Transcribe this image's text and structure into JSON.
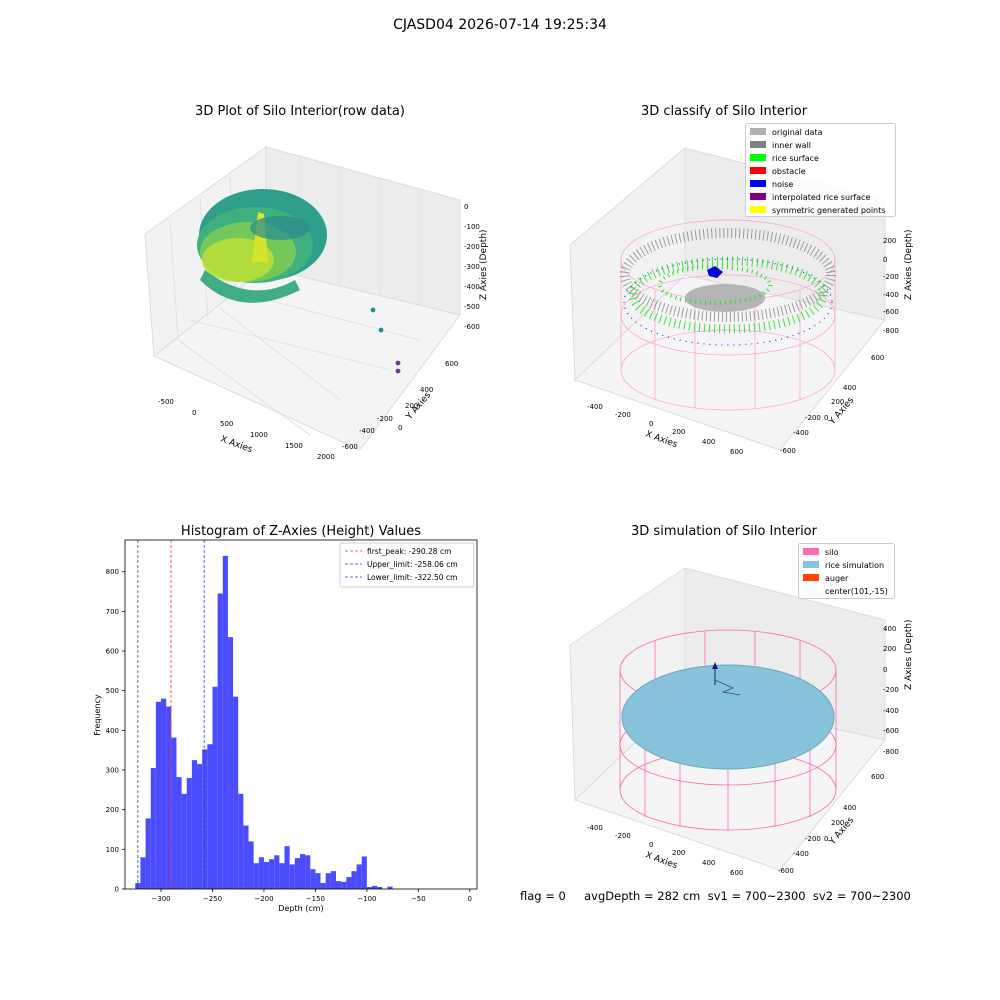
{
  "suptitle": "CJASD04 2026-07-14 19:25:34",
  "footer": "flag = 0     avgDepth = 282 cm  sv1 = 700~2300  sv2 = 700~2300",
  "colors": {
    "histogram_bar": "#4b4bff",
    "first_peak_line": "#e03c3c",
    "limit_lines": "#3a3acc",
    "silo_wire": "#ff69b4",
    "rice_simulation": "#87c4dc",
    "auger": "#ff4500"
  },
  "panel1": {
    "title": "3D Plot of Silo Interior(row data)",
    "xlabel": "X Axies",
    "ylabel": "Y Axies",
    "zlabel": "Z Axies (Depth)",
    "xticks": [
      "-500",
      "0",
      "500",
      "1000",
      "1500",
      "2000"
    ],
    "yticks": [
      "600",
      "400",
      "200",
      "0",
      "-200",
      "-400",
      "-600"
    ],
    "zticks": [
      "0",
      "-100",
      "-200",
      "-300",
      "-400",
      "-500",
      "-600"
    ]
  },
  "panel2": {
    "title": "3D classify of Silo Interior",
    "xlabel": "X Axies",
    "ylabel": "Y Axies",
    "zlabel": "Z Axies (Depth)",
    "xticks": [
      "-400",
      "-200",
      "0",
      "200",
      "400",
      "600"
    ],
    "yticks": [
      "600",
      "400",
      "200",
      "0",
      "-200",
      "-400",
      "-600"
    ],
    "zticks": [
      "200",
      "0",
      "-200",
      "-400",
      "-600",
      "-800"
    ],
    "legend": [
      {
        "label": "original data",
        "color": "#b0b0b0"
      },
      {
        "label": "inner wall",
        "color": "#808080"
      },
      {
        "label": "rice surface",
        "color": "#00ff00"
      },
      {
        "label": "obstacle",
        "color": "#ff0000"
      },
      {
        "label": "noise",
        "color": "#0000ff"
      },
      {
        "label": "interpolated rice surface",
        "color": "#800080"
      },
      {
        "label": "symmetric generated points",
        "color": "#ffff00"
      }
    ]
  },
  "panel4": {
    "title": "3D simulation of Silo Interior",
    "xlabel": "X Axies",
    "ylabel": "Y Axies",
    "zlabel": "Z Axies (Depth)",
    "xticks": [
      "-400",
      "-200",
      "0",
      "200",
      "400",
      "600"
    ],
    "yticks": [
      "600",
      "400",
      "200",
      "0",
      "-200",
      "-400",
      "-600"
    ],
    "zticks": [
      "400",
      "200",
      "0",
      "-200",
      "-400",
      "-600",
      "-800"
    ],
    "legend": [
      {
        "label": "silo",
        "color": "#ff69b4"
      },
      {
        "label": "rice simulation",
        "color": "#87c4dc"
      },
      {
        "label": "auger",
        "color": "#ff4500"
      },
      {
        "label": "center(101,-15)",
        "color": ""
      }
    ]
  },
  "chart_data": {
    "type": "bar",
    "title": "Histogram of Z-Axies (Height) Values",
    "xlabel": "Depth (cm)",
    "ylabel": "Frequency",
    "xlim": [
      -335,
      7
    ],
    "ylim": [
      0,
      880
    ],
    "xticks": [
      -300,
      -250,
      -200,
      -150,
      -100,
      -50,
      0
    ],
    "yticks": [
      0,
      100,
      200,
      300,
      400,
      500,
      600,
      700,
      800
    ],
    "bin_width": 5,
    "bin_starts": [
      -325,
      -320,
      -315,
      -310,
      -305,
      -300,
      -295,
      -290,
      -285,
      -280,
      -275,
      -270,
      -265,
      -260,
      -255,
      -250,
      -245,
      -240,
      -235,
      -230,
      -225,
      -220,
      -215,
      -210,
      -205,
      -200,
      -195,
      -190,
      -185,
      -180,
      -175,
      -170,
      -165,
      -160,
      -155,
      -150,
      -145,
      -140,
      -135,
      -130,
      -125,
      -120,
      -115,
      -110,
      -105,
      -100,
      -95,
      -90,
      -85,
      -80,
      -75,
      -70,
      -65,
      -60,
      -55,
      -50,
      -45,
      -40,
      -35,
      -30,
      -25,
      -20,
      -15,
      -10,
      -5,
      0
    ],
    "values": [
      15,
      80,
      178,
      305,
      472,
      480,
      460,
      382,
      282,
      240,
      280,
      325,
      315,
      352,
      365,
      510,
      745,
      840,
      635,
      485,
      240,
      160,
      120,
      65,
      80,
      68,
      75,
      85,
      65,
      108,
      62,
      78,
      88,
      85,
      50,
      40,
      15,
      40,
      45,
      20,
      18,
      30,
      45,
      62,
      82,
      5,
      8,
      5,
      0,
      6,
      0,
      0,
      0,
      0,
      0,
      0,
      0,
      0,
      0,
      0,
      0,
      0,
      0,
      0,
      0,
      0
    ],
    "vlines": [
      {
        "label": "first_peak: -290.28 cm",
        "x": -290.28,
        "color": "#e03c3c"
      },
      {
        "label": "Upper_limit: -258.06 cm",
        "x": -258.06,
        "color": "#3a3acc"
      },
      {
        "label": "Lower_limit: -322.50 cm",
        "x": -322.5,
        "color": "#3a3acc"
      }
    ],
    "legend_position": "top-right"
  }
}
